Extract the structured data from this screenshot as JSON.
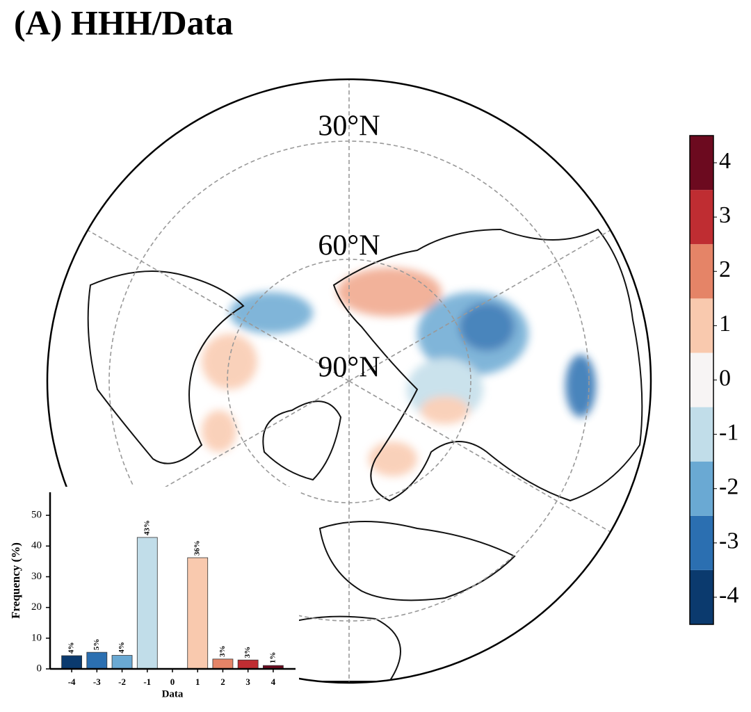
{
  "chart_data": [
    {
      "type": "map",
      "title": "(A) HHH/Data",
      "lat_labels": [
        "30°N",
        "60°N",
        "90°N"
      ]
    },
    {
      "type": "colorbar",
      "ylim": [
        -4.5,
        4.5
      ],
      "yticks": [
        -4,
        -3,
        -2,
        -1,
        0,
        1,
        2,
        3,
        4
      ],
      "colors": [
        "#0b3a6e",
        "#2b6fb1",
        "#6aa9d3",
        "#c1dde9",
        "#f7f4f4",
        "#f9c9ae",
        "#e58467",
        "#bf2d32",
        "#6c0a1f"
      ]
    },
    {
      "type": "bar",
      "xlabel": "Data",
      "ylabel": "Frequency (%)",
      "categories": [
        "-4",
        "-3",
        "-2",
        "-1",
        "0",
        "1",
        "2",
        "3",
        "4"
      ],
      "values": [
        4.3,
        5.4,
        4.4,
        42.8,
        0,
        36.2,
        3.2,
        2.9,
        1.1
      ],
      "value_labels": [
        "4%",
        "5%",
        "4%",
        "43%",
        null,
        "36%",
        "3%",
        "3%",
        "1%"
      ],
      "colors": [
        "#0b3a6e",
        "#2b6fb1",
        "#6aa9d3",
        "#c1dde9",
        "#f7f4f4",
        "#f9c9ae",
        "#e58467",
        "#bf2d32",
        "#6c0a1f"
      ],
      "ylim": [
        0,
        57.5
      ],
      "yticks": [
        0,
        10,
        20,
        30,
        40,
        50
      ]
    }
  ]
}
